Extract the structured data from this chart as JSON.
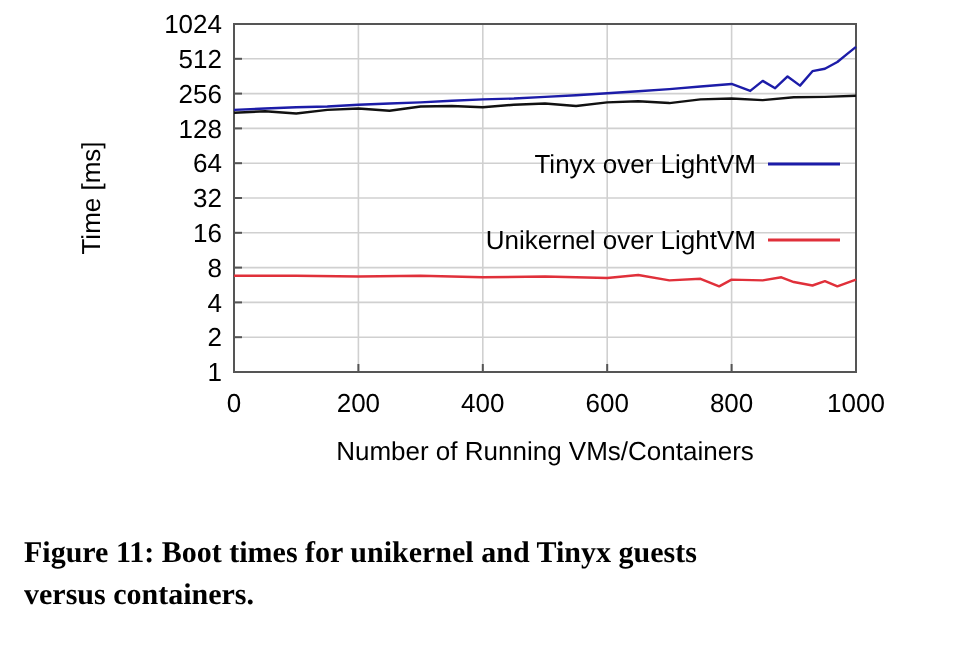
{
  "chart_data": {
    "type": "line",
    "title": "Figure 11: Boot times for unikernel and Tinyx guests versus containers.",
    "xlabel": "Number of Running VMs/Containers",
    "ylabel": "Time [ms]",
    "xlim": [
      0,
      1000
    ],
    "xticks": [
      0,
      200,
      400,
      600,
      800,
      1000
    ],
    "ylim": [
      1,
      1024
    ],
    "yticks": [
      1,
      2,
      4,
      8,
      16,
      32,
      64,
      128,
      256,
      512,
      1024
    ],
    "log": "y",
    "grid": true,
    "legend": "right",
    "series": [
      {
        "name": "Tinyx over LightVM",
        "color": "#1c1ca8",
        "x": [
          0,
          50,
          100,
          150,
          200,
          250,
          300,
          350,
          400,
          450,
          500,
          550,
          600,
          650,
          700,
          750,
          800,
          830,
          850,
          870,
          890,
          910,
          930,
          950,
          970,
          985,
          1000
        ],
        "values": [
          185,
          190,
          195,
          198,
          205,
          210,
          215,
          222,
          228,
          232,
          240,
          248,
          258,
          268,
          280,
          295,
          310,
          270,
          330,
          285,
          360,
          300,
          400,
          420,
          480,
          560,
          650
        ]
      },
      {
        "color": "#111111",
        "x": [
          0,
          50,
          100,
          150,
          200,
          250,
          300,
          350,
          400,
          450,
          500,
          550,
          600,
          650,
          700,
          750,
          800,
          850,
          900,
          950,
          1000
        ],
        "values": [
          175,
          180,
          172,
          185,
          190,
          182,
          198,
          200,
          195,
          205,
          210,
          200,
          215,
          220,
          212,
          228,
          232,
          225,
          238,
          240,
          245
        ]
      },
      {
        "name": "Unikernel over LightVM",
        "color": "#e0303a",
        "x": [
          0,
          100,
          200,
          300,
          400,
          500,
          600,
          650,
          700,
          750,
          780,
          800,
          850,
          880,
          900,
          930,
          950,
          970,
          1000
        ],
        "values": [
          6.8,
          6.8,
          6.7,
          6.8,
          6.6,
          6.7,
          6.5,
          6.9,
          6.2,
          6.4,
          5.5,
          6.3,
          6.2,
          6.6,
          6,
          5.6,
          6.1,
          5.5,
          6.3
        ]
      }
    ]
  }
}
